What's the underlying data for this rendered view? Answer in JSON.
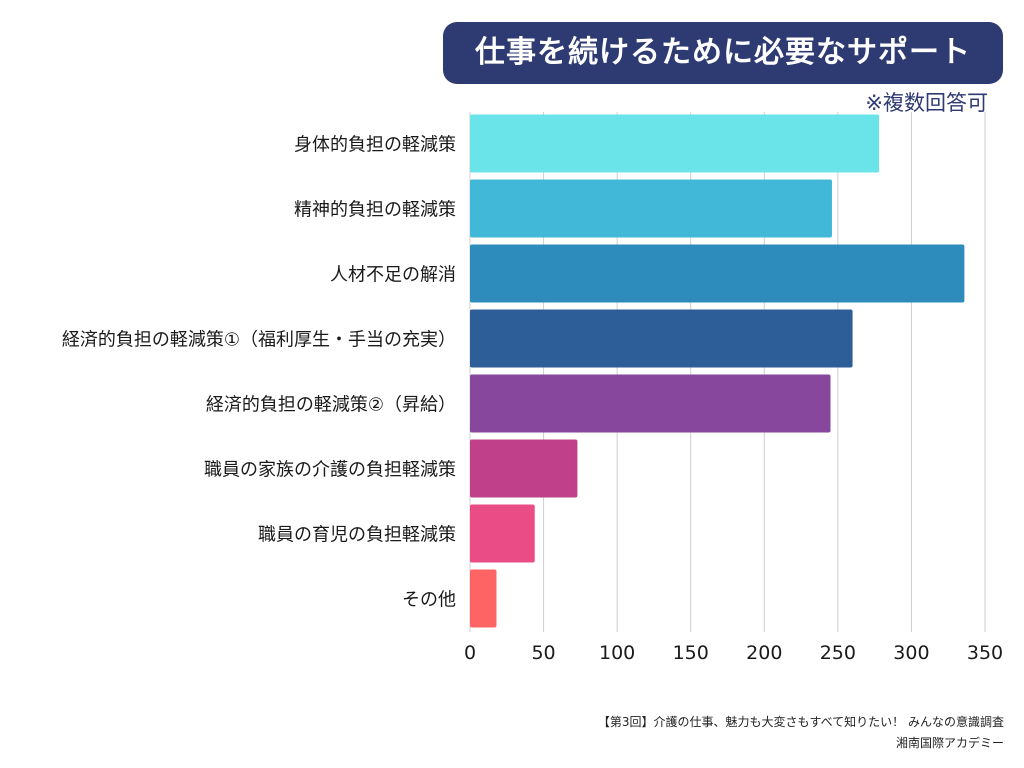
{
  "header": {
    "title": "仕事を続けるために必要なサポート",
    "note": "※複数回答可"
  },
  "footer": {
    "line1": "【第3回】介護の仕事、魅力も大変さもすべて知りたい！ みんなの意識調査",
    "line2": "湘南国際アカデミー"
  },
  "chart_data": {
    "type": "bar",
    "orientation": "horizontal",
    "title": "仕事を続けるために必要なサポート",
    "categories": [
      "身体的負担の軽減策",
      "精神的負担の軽減策",
      "人材不足の解消",
      "経済的負担の軽減策①（福利厚生・手当の充実）",
      "経済的負担の軽減策②（昇給）",
      "職員の家族の介護の負担軽減策",
      "職員の育児の負担軽減策",
      "その他"
    ],
    "values": [
      278,
      246,
      336,
      260,
      245,
      73,
      44,
      18
    ],
    "colors": [
      "#6ae4e8",
      "#42b8d8",
      "#2d8cbc",
      "#2e5e98",
      "#86479c",
      "#c0408a",
      "#ea4c86",
      "#ff6464"
    ],
    "xlim": [
      0,
      350
    ],
    "xticks": [
      0,
      50,
      100,
      150,
      200,
      250,
      300,
      350
    ],
    "grid": true
  }
}
